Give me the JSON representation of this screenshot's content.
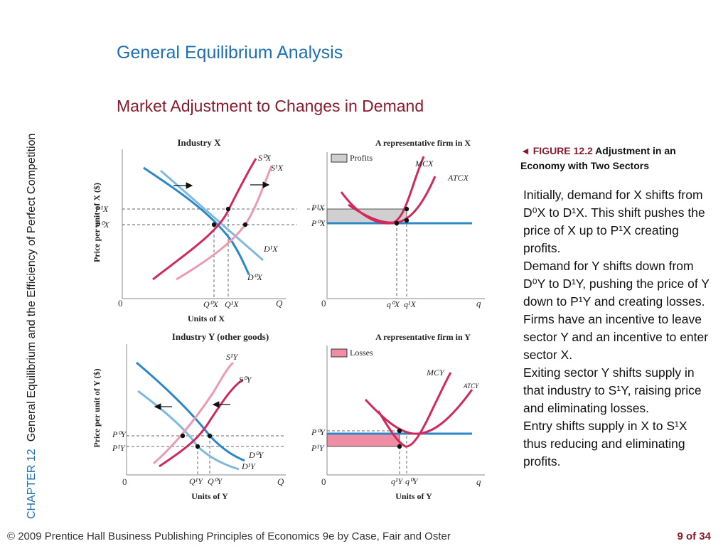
{
  "sidebar": {
    "chapter": "CHAPTER 12",
    "title": "General Equilibrium and the Efficiency of Perfect Competition"
  },
  "title": "General Equilibrium Analysis",
  "subtitle": "Market Adjustment to Changes in Demand",
  "caption": {
    "arrow": "◄",
    "figure": "FIGURE 12.2",
    "text": "Adjustment in an Economy with Two Sectors"
  },
  "body": [
    "Initially, demand for X shifts from D⁰X to D¹X. This shift pushes the price of X up to P¹X creating profits.",
    "Demand for Y shifts down from D⁰Y to D¹Y, pushing the price of Y down to P¹Y and creating losses.",
    "Firms have an incentive to leave sector Y and an incentive to enter sector X.",
    "Exiting sector Y shifts supply in that industry to S¹Y, raising price and eliminating losses.",
    "Entry shifts supply in X to S¹X thus reducing and eliminating profits."
  ],
  "footer": {
    "left": "© 2009 Prentice Hall Business Publishing   Principles of Economics 9e by Case, Fair and Oster",
    "right": "9 of 34"
  },
  "colors": {
    "demand": "#2b87c8",
    "demand_light": "#7fb9e0",
    "supply": "#d2285a",
    "supply_light": "#ec9ab4",
    "price_line": "#2b87c8"
  },
  "chart_data": [
    {
      "type": "line",
      "title": "Industry X",
      "ylabel": "Price per unit of X ($)",
      "xlabel": "Units of X",
      "x_axis_end": "Q",
      "origin": "0",
      "price_ticks": [
        "P¹X",
        "P⁰X"
      ],
      "quantity_ticks": [
        "Q⁰X",
        "Q¹X"
      ],
      "series": [
        {
          "name": "S⁰X",
          "role": "supply"
        },
        {
          "name": "S¹X",
          "role": "supply-shifted"
        },
        {
          "name": "D¹X",
          "role": "demand"
        },
        {
          "name": "D⁰X",
          "role": "demand-original"
        }
      ],
      "shift_arrows": "right"
    },
    {
      "type": "line",
      "title": "A representative firm in X",
      "origin": "0",
      "x_axis_end": "q",
      "legend": "Profits",
      "price_ticks": [
        "P¹X",
        "P⁰X"
      ],
      "quantity_ticks": [
        "q⁰X",
        "q¹X"
      ],
      "series": [
        {
          "name": "MCX"
        },
        {
          "name": "ATCX"
        }
      ]
    },
    {
      "type": "line",
      "title": "Industry Y (other goods)",
      "ylabel": "Price per unit of Y ($)",
      "xlabel": "Units of Y",
      "x_axis_end": "Q",
      "origin": "0",
      "price_ticks": [
        "P⁰Y",
        "P¹Y"
      ],
      "quantity_ticks": [
        "Q¹Y",
        "Q⁰Y"
      ],
      "series": [
        {
          "name": "S¹Y",
          "role": "supply-shifted"
        },
        {
          "name": "S⁰Y",
          "role": "supply"
        },
        {
          "name": "D⁰Y",
          "role": "demand"
        },
        {
          "name": "D¹Y",
          "role": "demand-shifted"
        }
      ],
      "shift_arrows": "left"
    },
    {
      "type": "line",
      "title": "A representative firm in Y",
      "xlabel": "Units of Y",
      "origin": "0",
      "x_axis_end": "q",
      "legend": "Losses",
      "price_ticks": [
        "P⁰Y",
        "P¹Y"
      ],
      "quantity_ticks": [
        "q¹Y",
        "q⁰Y"
      ],
      "series": [
        {
          "name": "MCY"
        },
        {
          "name": "ATCY"
        }
      ]
    }
  ]
}
